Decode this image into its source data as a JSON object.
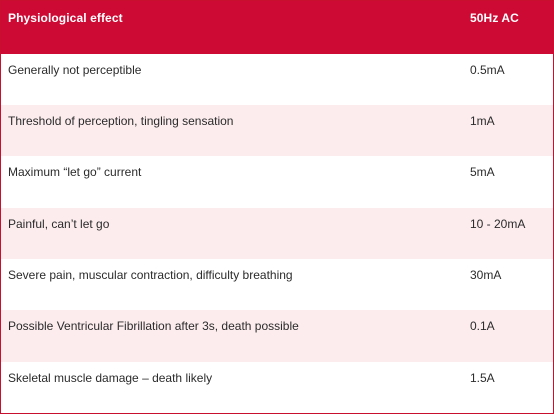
{
  "table": {
    "header": {
      "effect": "Physiological effect",
      "current": "50Hz AC"
    },
    "rows": [
      {
        "effect": "Generally not perceptible",
        "current": "0.5mA"
      },
      {
        "effect": "Threshold of perception, tingling sensation",
        "current": "1mA"
      },
      {
        "effect": "Maximum “let go” current",
        "current": "5mA"
      },
      {
        "effect": "Painful, can’t let go",
        "current": "10 - 20mA"
      },
      {
        "effect": "Severe pain, muscular contraction, difficulty breathing",
        "current": "30mA"
      },
      {
        "effect": "Possible Ventricular Fibrillation after 3s, death possible",
        "current": "0.1A"
      },
      {
        "effect": "Skeletal muscle damage – death likely",
        "current": "1.5A"
      }
    ],
    "colors": {
      "header_bg": "#cc0a34",
      "header_text": "#ffffff",
      "stripe": "#fcecee",
      "border": "#c8102e"
    }
  }
}
